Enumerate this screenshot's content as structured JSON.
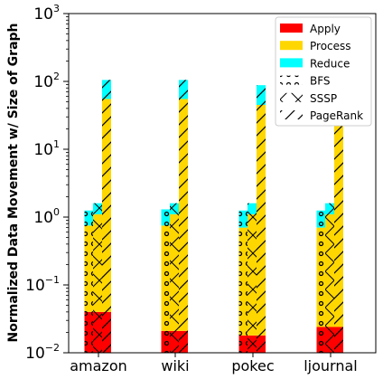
{
  "chart_data": {
    "type": "bar",
    "stacked": true,
    "ylabel": "Normalized Data Movement w/ Size of Graph",
    "yscale": "log",
    "ylim": [
      0.01,
      1000
    ],
    "yticks": [
      {
        "value": 0.01,
        "base": "10",
        "exp": "−2"
      },
      {
        "value": 0.1,
        "base": "10",
        "exp": "−1"
      },
      {
        "value": 1,
        "base": "10",
        "exp": "0"
      },
      {
        "value": 10,
        "base": "10",
        "exp": "1"
      },
      {
        "value": 100,
        "base": "10",
        "exp": "2"
      },
      {
        "value": 1000,
        "base": "10",
        "exp": "3"
      }
    ],
    "categories": [
      "amazon",
      "wiki",
      "pokec",
      "ljournal"
    ],
    "stack_segments": [
      {
        "name": "Apply",
        "color": "#ff0000"
      },
      {
        "name": "Process",
        "color": "#ffd700"
      },
      {
        "name": "Reduce",
        "color": "#00ffff"
      }
    ],
    "algorithms": [
      {
        "name": "BFS",
        "hatch": "circles"
      },
      {
        "name": "SSSP",
        "hatch": "cross"
      },
      {
        "name": "PageRank",
        "hatch": "slash"
      }
    ],
    "bars": [
      {
        "category": "amazon",
        "algorithm": "BFS",
        "apply_top": 0.04,
        "process_top": 0.75,
        "reduce_top": 1.25
      },
      {
        "category": "amazon",
        "algorithm": "SSSP",
        "apply_top": 0.04,
        "process_top": 1.1,
        "reduce_top": 1.6
      },
      {
        "category": "amazon",
        "algorithm": "PageRank",
        "apply_top": 0.04,
        "process_top": 55,
        "reduce_top": 105
      },
      {
        "category": "wiki",
        "algorithm": "BFS",
        "apply_top": 0.021,
        "process_top": 0.75,
        "reduce_top": 1.3
      },
      {
        "category": "wiki",
        "algorithm": "SSSP",
        "apply_top": 0.021,
        "process_top": 1.1,
        "reduce_top": 1.6
      },
      {
        "category": "wiki",
        "algorithm": "PageRank",
        "apply_top": 0.021,
        "process_top": 55,
        "reduce_top": 105
      },
      {
        "category": "pokec",
        "algorithm": "BFS",
        "apply_top": 0.018,
        "process_top": 0.7,
        "reduce_top": 1.25
      },
      {
        "category": "pokec",
        "algorithm": "SSSP",
        "apply_top": 0.018,
        "process_top": 1.1,
        "reduce_top": 1.6
      },
      {
        "category": "pokec",
        "algorithm": "PageRank",
        "apply_top": 0.018,
        "process_top": 45,
        "reduce_top": 88
      },
      {
        "category": "ljournal",
        "algorithm": "BFS",
        "apply_top": 0.024,
        "process_top": 0.7,
        "reduce_top": 1.25
      },
      {
        "category": "ljournal",
        "algorithm": "SSSP",
        "apply_top": 0.024,
        "process_top": 1.1,
        "reduce_top": 1.6
      },
      {
        "category": "ljournal",
        "algorithm": "PageRank",
        "apply_top": 0.024,
        "process_top": 45,
        "reduce_top": 98
      }
    ],
    "legend": {
      "placement": "top-right",
      "entries": [
        "Apply",
        "Process",
        "Reduce",
        "BFS",
        "SSSP",
        "PageRank"
      ]
    },
    "grid": false
  }
}
